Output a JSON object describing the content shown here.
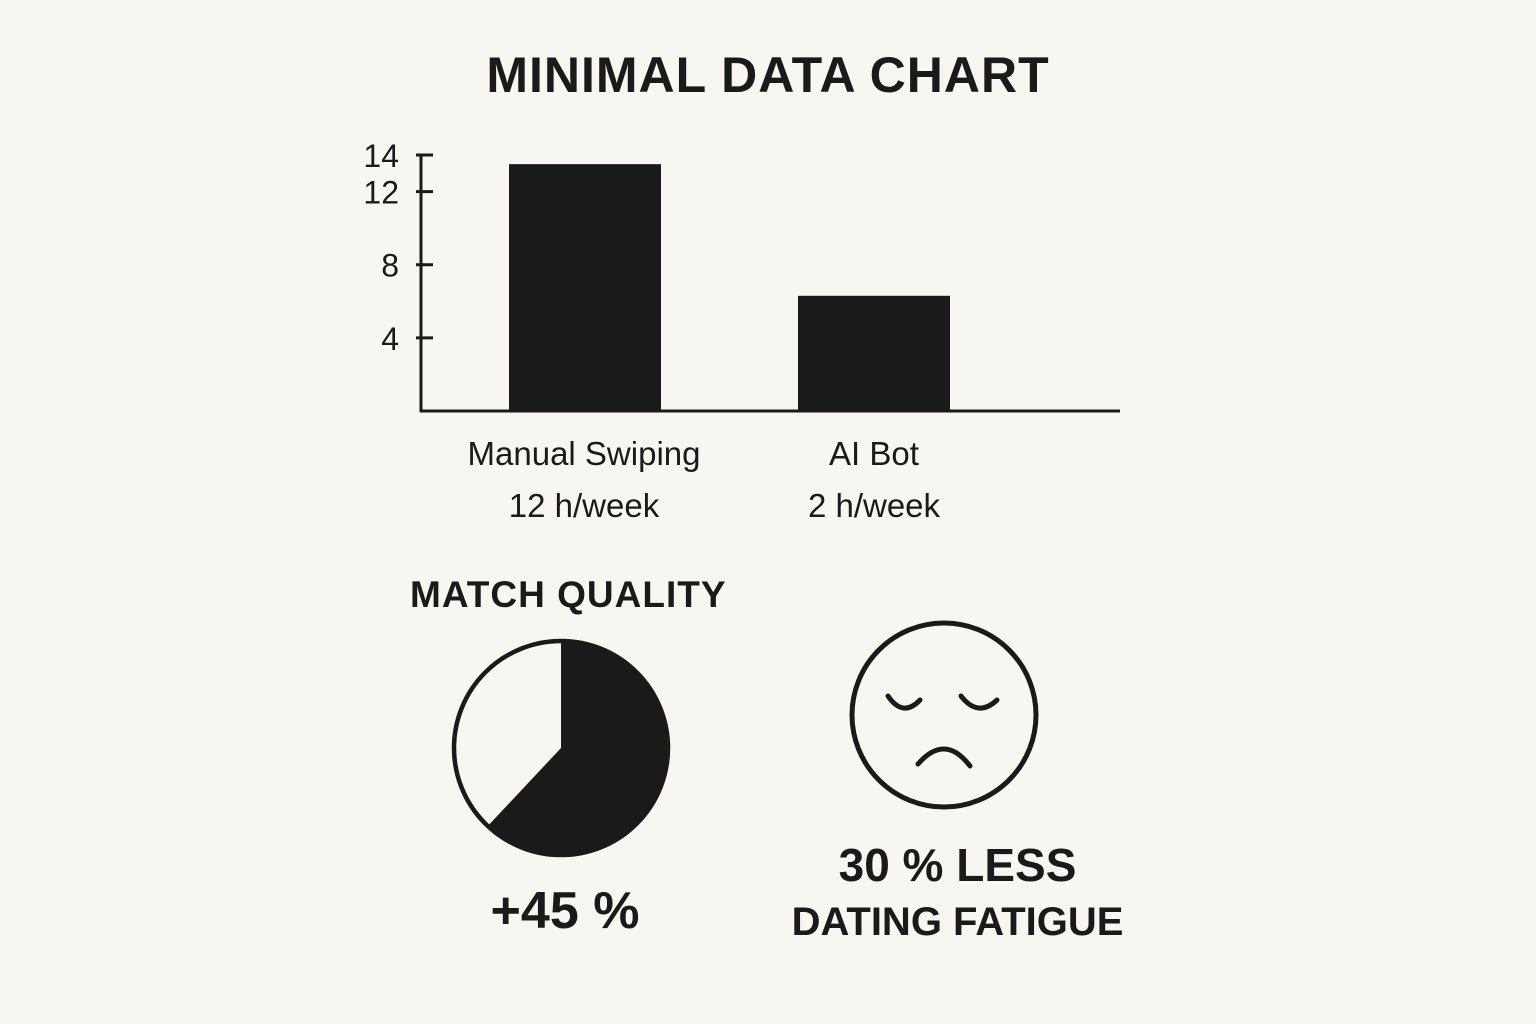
{
  "chart_data": [
    {
      "type": "bar",
      "title": "MINIMAL DATA CHART",
      "categories": [
        "Manual Swiping",
        "AI Bot"
      ],
      "category_sublabels": [
        "12 h/week",
        "2 h/week"
      ],
      "values": [
        13.5,
        6.3
      ],
      "yticks": [
        4,
        8,
        12,
        14
      ],
      "ylim": [
        0,
        14
      ],
      "grid": false
    },
    {
      "type": "pie",
      "title": "MATCH QUALITY",
      "value_label": "+45 %",
      "filled_fraction": 0.62
    }
  ],
  "fatigue": {
    "icon": "sad-face-icon",
    "line1": "30 % LESS",
    "line2": "DATING FATIGUE"
  },
  "colors": {
    "ink": "#1a1a1a",
    "background": "#f8f6f1"
  }
}
